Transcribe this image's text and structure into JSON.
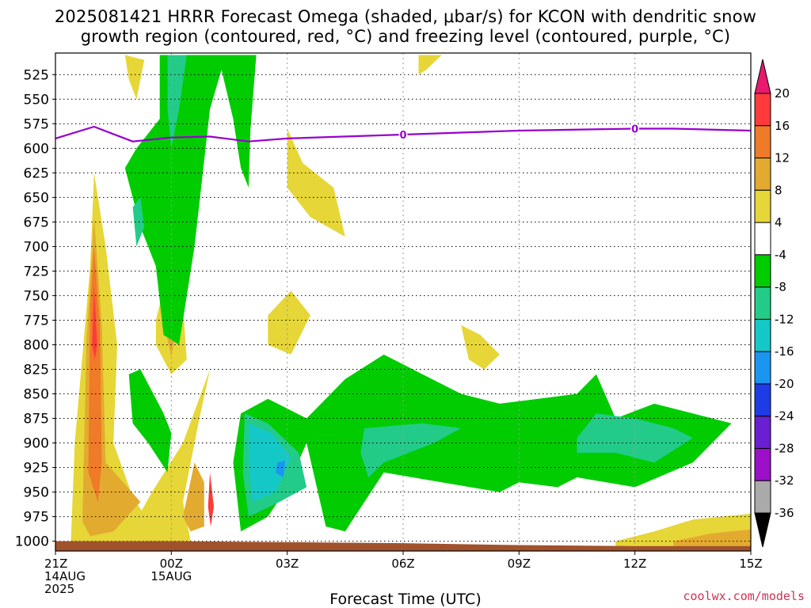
{
  "title_line1": "2025081421 HRRR Forecast Omega (shaded, μbar/s) for KCON with dendritic snow",
  "title_line2": "growth region (contoured, red, °C) and freezing level (contoured, purple, °C)",
  "xlabel": "Forecast Time (UTC)",
  "credit": "coolwx.com/models",
  "chart_data": {
    "type": "heatmap",
    "title": "2025081421 HRRR Forecast Omega (shaded, μbar/s) for KCON with dendritic snow growth region (contoured, red, °C) and freezing level (contoured, purple, °C)",
    "xlabel": "Forecast Time (UTC)",
    "ylabel": "",
    "x_ticks": [
      {
        "hour": 0,
        "lines": [
          "21Z",
          "14AUG",
          "2025"
        ]
      },
      {
        "hour": 3,
        "lines": [
          "00Z",
          "15AUG"
        ]
      },
      {
        "hour": 6,
        "lines": [
          "03Z"
        ]
      },
      {
        "hour": 9,
        "lines": [
          "06Z"
        ]
      },
      {
        "hour": 12,
        "lines": [
          "09Z"
        ]
      },
      {
        "hour": 15,
        "lines": [
          "12Z"
        ]
      },
      {
        "hour": 18,
        "lines": [
          "15Z"
        ]
      }
    ],
    "xlim_hours": [
      0,
      18
    ],
    "y_ticks": [
      525,
      550,
      575,
      600,
      625,
      650,
      675,
      700,
      725,
      750,
      775,
      800,
      825,
      850,
      875,
      900,
      925,
      950,
      975,
      1000
    ],
    "ylim_hPa": [
      503,
      1010
    ],
    "colorbar": {
      "ticks": [
        20,
        16,
        12,
        8,
        4,
        -4,
        -8,
        -12,
        -16,
        -20,
        -24,
        -28,
        -32,
        -36
      ],
      "colors": [
        "#e8196e",
        "#ff3a3a",
        "#ef7a28",
        "#e3aa30",
        "#e6d637",
        "#ffffff",
        "#00cc00",
        "#22cc88",
        "#15c8c8",
        "#1a96f0",
        "#1e3ce6",
        "#6a1fd2",
        "#9b10c8",
        "#aaaaaa",
        "#000000"
      ]
    },
    "freezing_level": {
      "label": "0",
      "color": "#9900cc",
      "points": [
        [
          0,
          590
        ],
        [
          1,
          578
        ],
        [
          2,
          593
        ],
        [
          3,
          589
        ],
        [
          4,
          588
        ],
        [
          5,
          593
        ],
        [
          6,
          590
        ],
        [
          9,
          586
        ],
        [
          12,
          582
        ],
        [
          15,
          580
        ],
        [
          16,
          580
        ],
        [
          18,
          582
        ]
      ]
    },
    "omega_regions": [
      {
        "value": 4,
        "color": "#e6d637",
        "points": [
          [
            0.4,
            1000
          ],
          [
            0.5,
            900
          ],
          [
            0.9,
            720
          ],
          [
            1.0,
            625
          ],
          [
            1.3,
            700
          ],
          [
            1.6,
            800
          ],
          [
            1.5,
            900
          ],
          [
            2.0,
            955
          ],
          [
            2.5,
            985
          ],
          [
            3.0,
            1000
          ]
        ]
      },
      {
        "value": 8,
        "color": "#e3aa30",
        "points": [
          [
            0.7,
            980
          ],
          [
            0.8,
            800
          ],
          [
            1.0,
            670
          ],
          [
            1.2,
            780
          ],
          [
            1.3,
            920
          ],
          [
            2.2,
            960
          ],
          [
            1.5,
            990
          ],
          [
            0.9,
            995
          ]
        ]
      },
      {
        "value": 12,
        "color": "#ef7a28",
        "points": [
          [
            0.85,
            930
          ],
          [
            0.9,
            760
          ],
          [
            1.0,
            700
          ],
          [
            1.15,
            780
          ],
          [
            1.2,
            920
          ],
          [
            1.1,
            960
          ]
        ]
      },
      {
        "value": 16,
        "color": "#ff3a3a",
        "points": [
          [
            0.95,
            800
          ],
          [
            1.0,
            740
          ],
          [
            1.08,
            800
          ],
          [
            1.02,
            815
          ]
        ]
      },
      {
        "value": 4,
        "color": "#e6d637",
        "points": [
          [
            2.6,
            775
          ],
          [
            2.9,
            728
          ],
          [
            3.3,
            760
          ],
          [
            3.4,
            815
          ],
          [
            3.0,
            830
          ],
          [
            2.6,
            800
          ]
        ]
      },
      {
        "value": 8,
        "color": "#e3aa30",
        "points": [
          [
            2.85,
            785
          ],
          [
            3.0,
            750
          ],
          [
            3.1,
            790
          ],
          [
            3.0,
            812
          ]
        ]
      },
      {
        "value": 4,
        "color": "#e6d637",
        "points": [
          [
            2.0,
            985
          ],
          [
            2.5,
            950
          ],
          [
            3.3,
            900
          ],
          [
            4.0,
            825
          ],
          [
            3.7,
            880
          ],
          [
            3.3,
            960
          ],
          [
            3.5,
            1000
          ],
          [
            2.5,
            1003
          ]
        ]
      },
      {
        "value": 8,
        "color": "#e3aa30",
        "points": [
          [
            3.3,
            975
          ],
          [
            3.6,
            920
          ],
          [
            3.85,
            940
          ],
          [
            3.85,
            985
          ],
          [
            3.5,
            990
          ]
        ]
      },
      {
        "value": 12,
        "color": "#ff3a3a",
        "points": [
          [
            3.95,
            965
          ],
          [
            4.0,
            930
          ],
          [
            4.1,
            965
          ],
          [
            4.02,
            985
          ]
        ]
      },
      {
        "value": 4,
        "color": "#e6d637",
        "points": [
          [
            6.0,
            580
          ],
          [
            6.4,
            615
          ],
          [
            7.2,
            640
          ],
          [
            7.5,
            690
          ],
          [
            6.6,
            670
          ],
          [
            6.0,
            640
          ]
        ]
      },
      {
        "value": 4,
        "color": "#e6d637",
        "points": [
          [
            5.5,
            770
          ],
          [
            6.1,
            745
          ],
          [
            6.6,
            770
          ],
          [
            6.1,
            810
          ],
          [
            5.5,
            800
          ]
        ]
      },
      {
        "value": 4,
        "color": "#e6d637",
        "points": [
          [
            10.5,
            780
          ],
          [
            11.0,
            790
          ],
          [
            11.5,
            810
          ],
          [
            11.1,
            825
          ],
          [
            10.7,
            815
          ]
        ]
      },
      {
        "value": 4,
        "color": "#e6d637",
        "points": [
          [
            1.8,
            505
          ],
          [
            2.3,
            510
          ],
          [
            2.1,
            550
          ],
          [
            1.9,
            530
          ]
        ]
      },
      {
        "value": 4,
        "color": "#e6d637",
        "points": [
          [
            9.4,
            505
          ],
          [
            10.0,
            505
          ],
          [
            9.6,
            520
          ],
          [
            9.4,
            525
          ]
        ]
      },
      {
        "value": 4,
        "color": "#e6d637",
        "points": [
          [
            14.5,
            1000
          ],
          [
            15.5,
            990
          ],
          [
            16.5,
            978
          ],
          [
            18.0,
            972
          ],
          [
            18.0,
            1005
          ],
          [
            14.5,
            1005
          ]
        ]
      },
      {
        "value": 8,
        "color": "#e3aa30",
        "points": [
          [
            16.0,
            1000
          ],
          [
            17.0,
            992
          ],
          [
            18.0,
            988
          ],
          [
            18.0,
            1005
          ],
          [
            16.0,
            1005
          ]
        ]
      },
      {
        "value": -4,
        "color": "#00cc00",
        "points": [
          [
            2.7,
            505
          ],
          [
            5.2,
            505
          ],
          [
            5.05,
            580
          ],
          [
            5.0,
            640
          ],
          [
            4.8,
            620
          ],
          [
            4.6,
            570
          ],
          [
            4.3,
            520
          ],
          [
            4.0,
            560
          ],
          [
            3.6,
            700
          ],
          [
            3.2,
            800
          ],
          [
            2.8,
            790
          ],
          [
            2.6,
            720
          ],
          [
            2.2,
            680
          ],
          [
            1.8,
            620
          ],
          [
            2.1,
            600
          ],
          [
            2.7,
            570
          ]
        ]
      },
      {
        "value": -8,
        "color": "#22cc88",
        "points": [
          [
            2.9,
            505
          ],
          [
            3.4,
            505
          ],
          [
            3.2,
            560
          ],
          [
            3.0,
            600
          ],
          [
            2.9,
            560
          ]
        ]
      },
      {
        "value": -8,
        "color": "#22cc88",
        "points": [
          [
            2.0,
            660
          ],
          [
            2.2,
            650
          ],
          [
            2.3,
            680
          ],
          [
            2.1,
            700
          ]
        ]
      },
      {
        "value": -4,
        "color": "#00cc00",
        "points": [
          [
            1.9,
            830
          ],
          [
            2.2,
            825
          ],
          [
            2.8,
            870
          ],
          [
            3.0,
            890
          ],
          [
            2.9,
            930
          ],
          [
            2.4,
            900
          ],
          [
            2.0,
            880
          ]
        ]
      },
      {
        "value": -4,
        "color": "#00cc00",
        "points": [
          [
            4.8,
            870
          ],
          [
            5.5,
            855
          ],
          [
            6.5,
            875
          ],
          [
            7.5,
            835
          ],
          [
            8.5,
            810
          ],
          [
            9.5,
            830
          ],
          [
            10.5,
            850
          ],
          [
            11.5,
            860
          ],
          [
            12.5,
            855
          ],
          [
            13.5,
            850
          ],
          [
            14.0,
            830
          ],
          [
            14.5,
            875
          ],
          [
            15.5,
            860
          ],
          [
            16.5,
            870
          ],
          [
            17.5,
            880
          ],
          [
            16.5,
            920
          ],
          [
            15.0,
            945
          ],
          [
            13.5,
            935
          ],
          [
            13.0,
            945
          ],
          [
            12.0,
            940
          ],
          [
            11.5,
            950
          ],
          [
            10.0,
            940
          ],
          [
            8.5,
            930
          ],
          [
            7.5,
            990
          ],
          [
            7.0,
            985
          ],
          [
            6.5,
            900
          ],
          [
            6.0,
            945
          ],
          [
            5.5,
            975
          ],
          [
            4.8,
            990
          ],
          [
            4.6,
            920
          ]
        ]
      },
      {
        "value": -8,
        "color": "#22cc88",
        "points": [
          [
            4.9,
            870
          ],
          [
            5.5,
            880
          ],
          [
            6.3,
            910
          ],
          [
            6.5,
            945
          ],
          [
            5.8,
            960
          ],
          [
            5.0,
            975
          ],
          [
            4.85,
            930
          ]
        ]
      },
      {
        "value": -12,
        "color": "#15c8c8",
        "points": [
          [
            5.0,
            880
          ],
          [
            5.6,
            890
          ],
          [
            6.1,
            915
          ],
          [
            5.7,
            950
          ],
          [
            5.1,
            960
          ],
          [
            5.0,
            920
          ]
        ]
      },
      {
        "value": -16,
        "color": "#1a96f0",
        "points": [
          [
            5.75,
            920
          ],
          [
            5.95,
            918
          ],
          [
            5.9,
            935
          ],
          [
            5.7,
            930
          ]
        ]
      },
      {
        "value": -8,
        "color": "#22cc88",
        "points": [
          [
            8.0,
            885
          ],
          [
            9.5,
            880
          ],
          [
            10.5,
            885
          ],
          [
            9.8,
            900
          ],
          [
            8.5,
            920
          ],
          [
            8.1,
            935
          ],
          [
            7.9,
            910
          ]
        ]
      },
      {
        "value": -8,
        "color": "#22cc88",
        "points": [
          [
            13.5,
            895
          ],
          [
            14.0,
            870
          ],
          [
            15.0,
            875
          ],
          [
            16.0,
            885
          ],
          [
            16.5,
            895
          ],
          [
            15.5,
            920
          ],
          [
            14.5,
            910
          ],
          [
            13.5,
            910
          ]
        ]
      }
    ]
  }
}
